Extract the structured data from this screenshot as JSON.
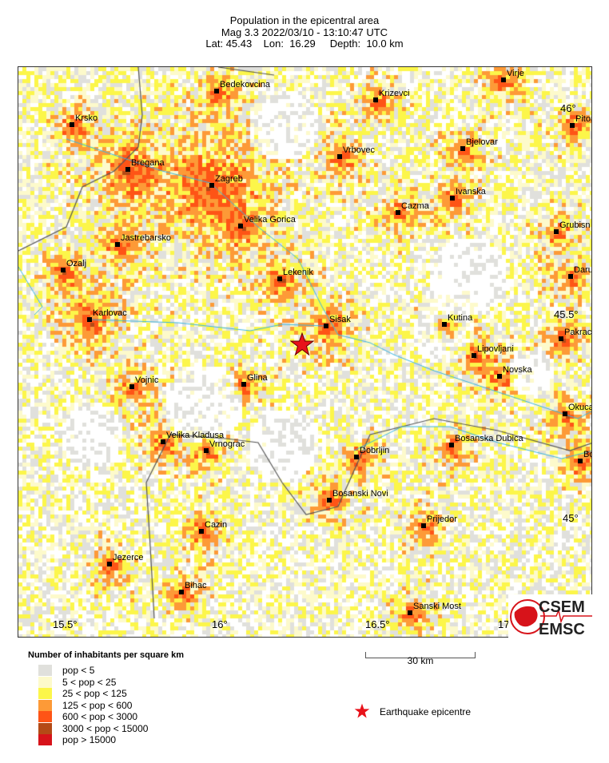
{
  "header": {
    "title": "Population in the epicentral area",
    "line2": "Mag 3.3  2022/03/10 - 13:10:47 UTC",
    "line3": "Lat: 45.43    Lon:  16.29     Depth:  10.0 km"
  },
  "map": {
    "cities": [
      "Bedekovcina",
      "Krizevci",
      "Virje",
      "Krsko",
      "Pitom",
      "Bjelovar",
      "Vrbovec",
      "Bregana",
      "Zagreb",
      "Ivanska",
      "Cazma",
      "Velika Gorica",
      "Grubisn",
      "Jastrebarsko",
      "Ozalj",
      "Daru",
      "Lekenik",
      "Karlovac",
      "Sisak",
      "Kutina",
      "Pakrac",
      "Lipovljani",
      "Novska",
      "Glina",
      "Vojnic",
      "Okuca",
      "Velika Kladusa",
      "Vrnograc",
      "Dobrljin",
      "Bosanska Dubica",
      "Bo",
      "Bosanski Novi",
      "Prijedor",
      "Cazin",
      "Jezerce",
      "Bihac",
      "Sanski Most"
    ],
    "lon_ticks": [
      "15.5°",
      "16°",
      "16.5°",
      "17"
    ],
    "lat_ticks": [
      "46°",
      "45.5°",
      "45°"
    ],
    "epicentre": {
      "lat": 45.43,
      "lon": 16.29,
      "color": "#e8121a",
      "icon": "star-icon"
    }
  },
  "legend": {
    "title": "Number of inhabitants per square km",
    "items": [
      {
        "label": "pop < 5",
        "color": "#e0e0dc"
      },
      {
        "label": "5 < pop < 25",
        "color": "#fdfacb"
      },
      {
        "label": "25 < pop < 125",
        "color": "#fcf64a"
      },
      {
        "label": "125 < pop < 600",
        "color": "#fd9a37"
      },
      {
        "label": "600 < pop < 3000",
        "color": "#fe5416"
      },
      {
        "label": "3000 < pop < 15000",
        "color": "#b44a16"
      },
      {
        "label": "pop > 15000",
        "color": "#d7131a"
      }
    ]
  },
  "scale": {
    "label": "30 km"
  },
  "epicentre_legend": {
    "label": "Earthquake epicentre"
  },
  "logo": {
    "top": "CSEM",
    "bottom": "EMSC"
  }
}
